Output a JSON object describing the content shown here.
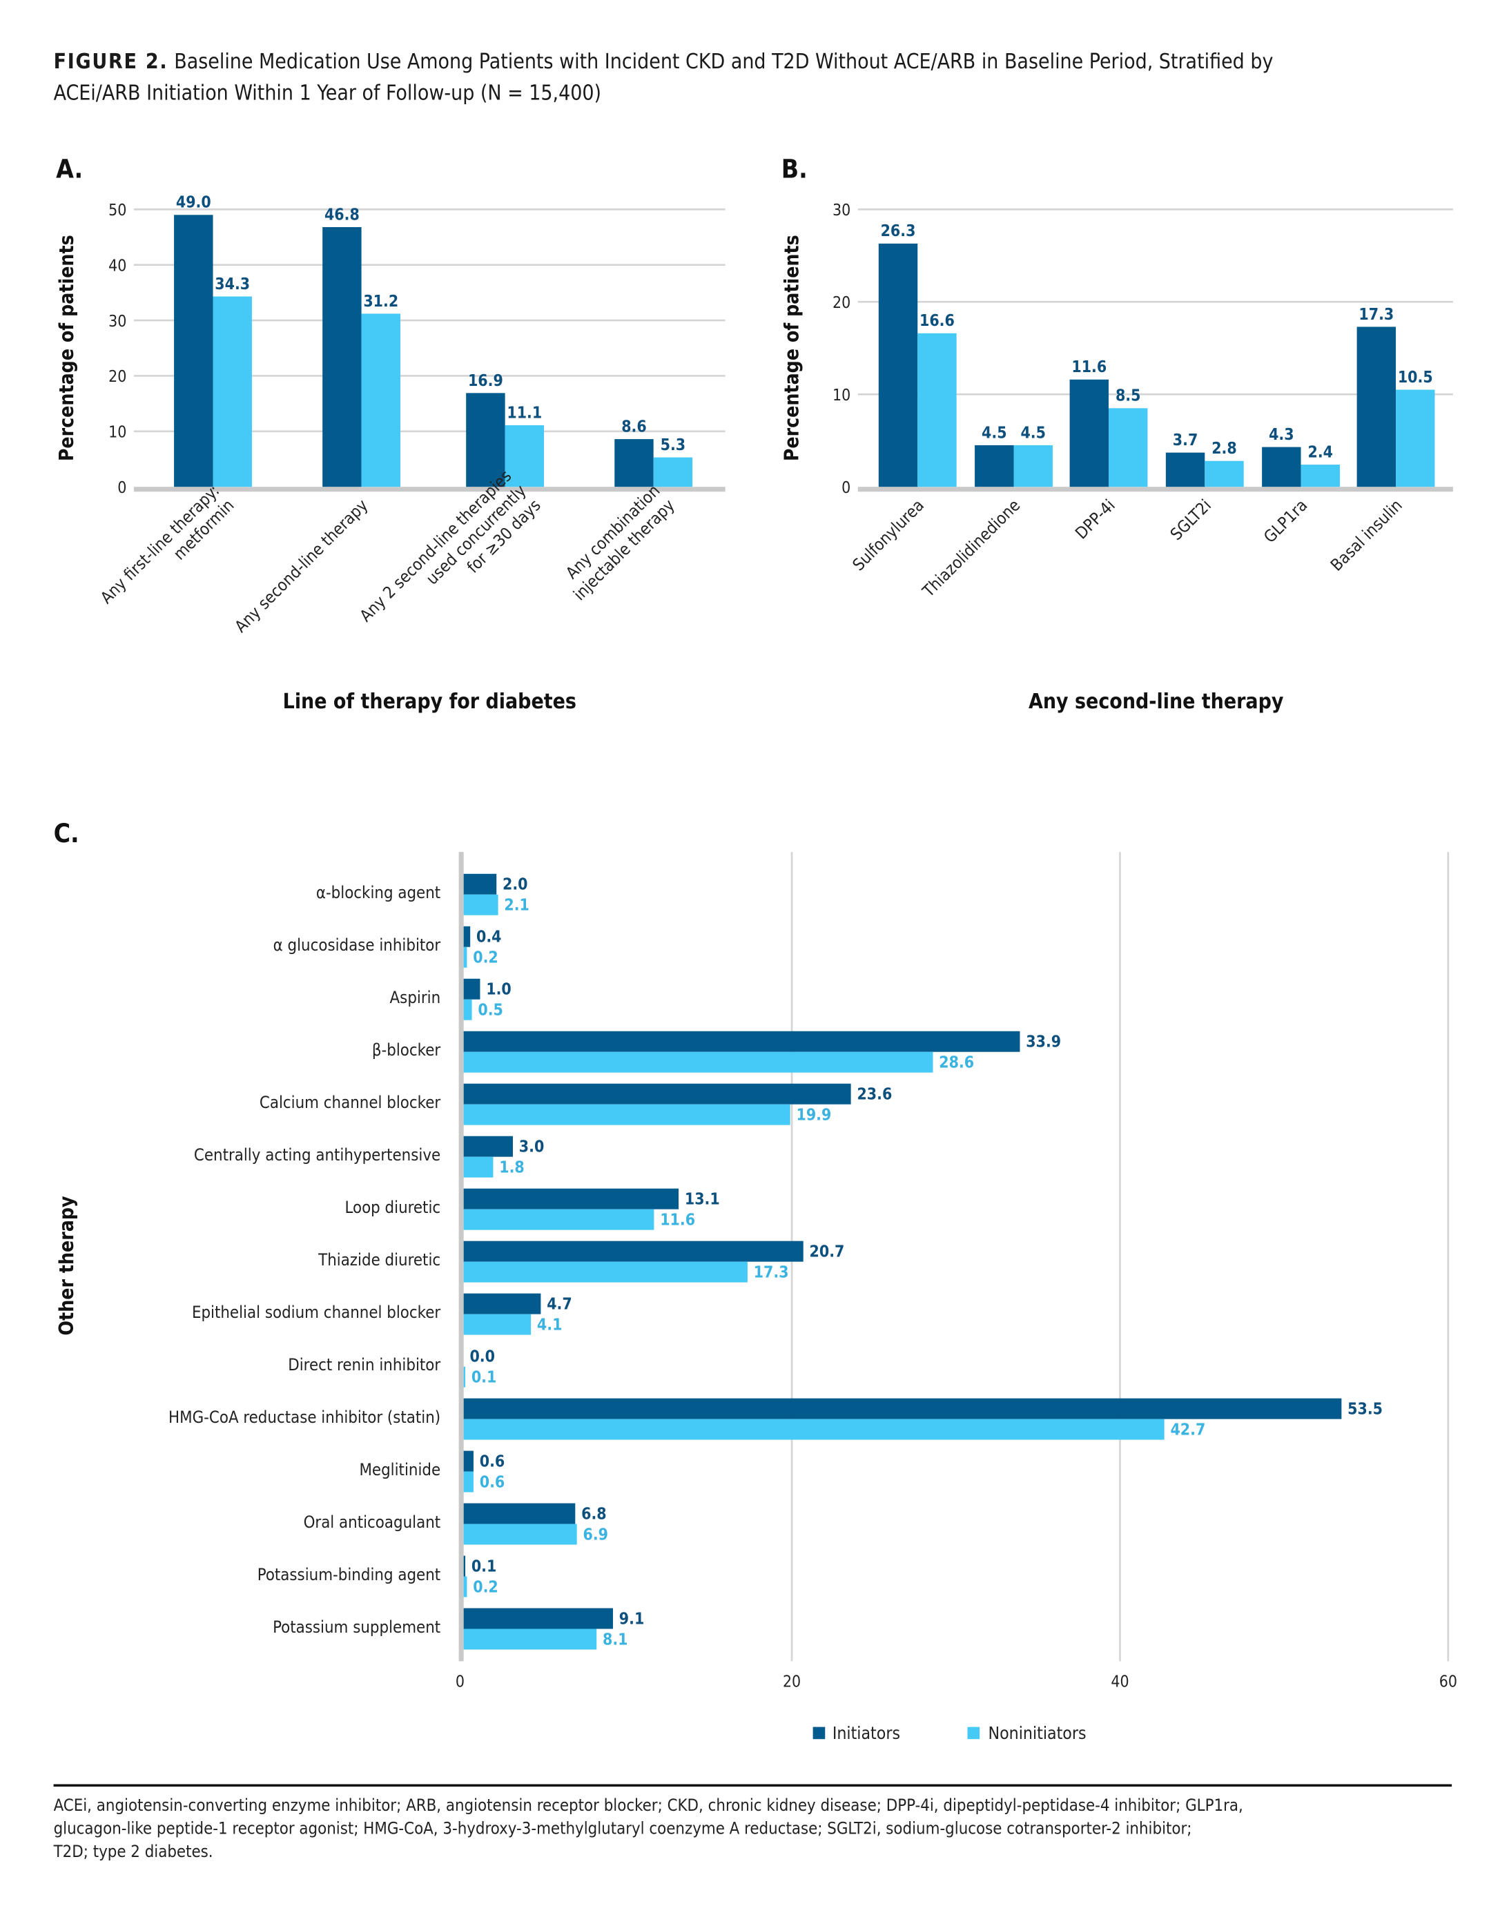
{
  "figure": {
    "label": "FIGURE 2.",
    "title_line1": "Baseline Medication Use Among Patients with Incident CKD and T2D Without ACE/ARB in Baseline Period, Stratified by",
    "title_line2": "ACEi/ARB Initiation Within 1 Year of Follow-up (N = 15,400)",
    "footnote": [
      "ACEi, angiotensin-converting enzyme inhibitor; ARB, angiotensin receptor blocker; CKD, chronic kidney disease; DPP-4i, dipeptidyl-peptidase-4 inhibitor; GLP1ra,",
      "glucagon-like peptide-1 receptor agonist; HMG-CoA, 3-hydroxy-3-methylglutaryl coenzyme A reductase; SGLT2i, sodium-glucose cotransporter-2 inhibitor;",
      "T2D; type 2 diabetes."
    ],
    "colors": {
      "initiators": "#035a8c",
      "noninitiators": "#45c9f6",
      "initiators_label": "#0d4f7d",
      "noninitiators_label": "#3ab3e0"
    }
  },
  "legend": {
    "initiators": "Initiators",
    "noninitiators": "Noninitiators"
  },
  "chart_data": [
    {
      "panel": "A.",
      "type": "bar",
      "orientation": "vertical",
      "xlabel": "Line of therapy for diabetes",
      "ylabel": "Percentage of patients",
      "ylim": [
        0,
        50
      ],
      "yticks": [
        0,
        10,
        20,
        30,
        40,
        50
      ],
      "grid": true,
      "categories": [
        [
          "Any first-line therapy:",
          "metformin"
        ],
        [
          "Any second-line therapy"
        ],
        [
          "Any 2 second-line therapies",
          "used concurrently",
          "for ≥30 days"
        ],
        [
          "Any combination",
          "injectable therapy"
        ]
      ],
      "series": [
        {
          "name": "Initiators",
          "values": [
            49.0,
            46.8,
            16.9,
            8.6
          ]
        },
        {
          "name": "Noninitiators",
          "values": [
            34.3,
            31.2,
            11.1,
            5.3
          ]
        }
      ]
    },
    {
      "panel": "B.",
      "type": "bar",
      "orientation": "vertical",
      "xlabel": "Any second-line therapy",
      "ylabel": "Percentage of patients",
      "ylim": [
        0,
        30
      ],
      "yticks": [
        0,
        10,
        20,
        30
      ],
      "grid": true,
      "categories": [
        [
          "Sulfonylurea"
        ],
        [
          "Thiazolidinedione"
        ],
        [
          "DPP-4i"
        ],
        [
          "SGLT2i"
        ],
        [
          "GLP1ra"
        ],
        [
          "Basal insulin"
        ]
      ],
      "series": [
        {
          "name": "Initiators",
          "values": [
            26.3,
            4.5,
            11.6,
            3.7,
            4.3,
            17.3
          ]
        },
        {
          "name": "Noninitiators",
          "values": [
            16.6,
            4.5,
            8.5,
            2.8,
            2.4,
            10.5
          ]
        }
      ]
    },
    {
      "panel": "C.",
      "type": "bar",
      "orientation": "horizontal",
      "xlabel": "",
      "ylabel": "Other therapy",
      "xlim": [
        0,
        60
      ],
      "xticks": [
        0,
        20,
        40,
        60
      ],
      "grid": true,
      "legend_position": "bottom",
      "categories": [
        "α-blocking agent",
        "α glucosidase inhibitor",
        "Aspirin",
        "β-blocker",
        "Calcium channel blocker",
        "Centrally acting antihypertensive",
        "Loop diuretic",
        "Thiazide diuretic",
        "Epithelial sodium channel blocker",
        "Direct renin inhibitor",
        "HMG-CoA reductase inhibitor (statin)",
        "Meglitinide",
        "Oral anticoagulant",
        "Potassium-binding agent",
        "Potassium supplement"
      ],
      "series": [
        {
          "name": "Initiators",
          "values": [
            2.0,
            0.4,
            1.0,
            33.9,
            23.6,
            3.0,
            13.1,
            20.7,
            4.7,
            0.0,
            53.5,
            0.6,
            6.8,
            0.1,
            9.1
          ]
        },
        {
          "name": "Noninitiators",
          "values": [
            2.1,
            0.2,
            0.5,
            28.6,
            19.9,
            1.8,
            11.6,
            17.3,
            4.1,
            0.1,
            42.7,
            0.6,
            6.9,
            0.2,
            8.1
          ]
        }
      ]
    }
  ]
}
